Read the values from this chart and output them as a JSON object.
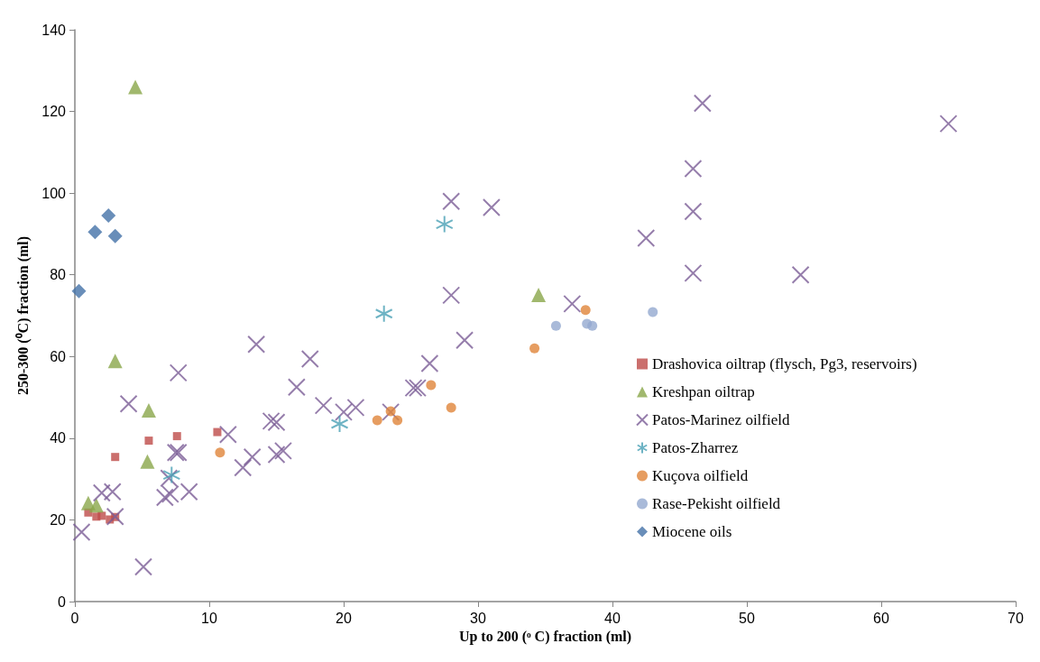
{
  "chart_data": {
    "type": "scatter",
    "xlabel": "Up to 200 (ᵒ C) fraction (ml)",
    "ylabel": "250-300 (⁰C) fraction (ml)",
    "xlim": [
      0,
      70
    ],
    "xticks": [
      0,
      10,
      20,
      30,
      40,
      50,
      60,
      70
    ],
    "ylim": [
      0,
      140
    ],
    "yticks": [
      0,
      20,
      40,
      60,
      80,
      100,
      120,
      140
    ],
    "grid": false,
    "legend": "right",
    "series": [
      {
        "name": "Drashovica oiltrap (flysch, Pg3, reservoirs)",
        "color": "#be4b48",
        "marker": "square",
        "x": [
          1.0,
          1.6,
          2.0,
          2.6,
          3.0,
          3.0,
          5.5,
          7.6,
          10.6
        ],
        "values": [
          21.8,
          20.8,
          21,
          20.1,
          20.7,
          35.4,
          39.4,
          40.5,
          41.5
        ]
      },
      {
        "name": "Kreshpan oiltrap",
        "color": "#8aa64a",
        "marker": "triangle",
        "x": [
          4.5,
          1.0,
          1.6,
          3.0,
          5.5,
          5.4,
          34.5
        ],
        "values": [
          126,
          24.1,
          23.6,
          58.9,
          46.8,
          34.3,
          75.1
        ]
      },
      {
        "name": "Patos-Marinez oilfield",
        "color": "#7a5c96",
        "marker": "cross",
        "x": [
          0.5,
          2.0,
          2.8,
          3.0,
          4.0,
          5.1,
          6.7,
          7.1,
          7.0,
          7.5,
          7.7,
          7.7,
          8.5,
          11.4,
          12.5,
          13.2,
          13.5,
          14.6,
          15.0,
          15.0,
          15.5,
          16.5,
          17.5,
          18.5,
          20.0,
          20.9,
          23.5,
          25.2,
          25.5,
          26.4,
          28.0,
          28.0,
          29.0,
          31.0,
          37.0,
          42.5,
          46.0,
          46.0,
          46.0,
          46.7,
          54.0,
          65.0
        ],
        "values": [
          17,
          26.6,
          26.9,
          20.8,
          48.4,
          8.5,
          25.5,
          26.3,
          30.2,
          36.5,
          36.5,
          56,
          26.9,
          40.9,
          32.8,
          35.4,
          63,
          44.2,
          43.9,
          36,
          36.9,
          52.5,
          59.4,
          48,
          46.4,
          47.5,
          46.4,
          52.3,
          52.3,
          58.3,
          75,
          98,
          64,
          96.5,
          72.9,
          89,
          106,
          95.5,
          80.4,
          122,
          80,
          117
        ]
      },
      {
        "name": "Patos-Zharrez",
        "color": "#4aa0b5",
        "marker": "cross",
        "x": [
          7.2,
          19.7,
          23.0,
          27.5
        ],
        "values": [
          31,
          43.5,
          70.5,
          92.4
        ]
      },
      {
        "name": "Kuçova oilfield",
        "color": "#e0843a",
        "marker": "circle",
        "x": [
          10.8,
          22.5,
          23.5,
          24.0,
          26.5,
          28.0,
          34.2,
          38.0
        ],
        "values": [
          36.5,
          44.4,
          46.6,
          44.4,
          53,
          47.5,
          62,
          71.4
        ]
      },
      {
        "name": "Rase-Pekisht oilfield",
        "color": "#93a9cf",
        "marker": "circle",
        "x": [
          35.8,
          38.1,
          38.5,
          43.0
        ],
        "values": [
          67.5,
          68,
          67.5,
          70.9
        ]
      },
      {
        "name": "Miocene oils",
        "color": "#4472a8",
        "marker": "diamond",
        "x": [
          0.3,
          1.5,
          2.5,
          3.0
        ],
        "values": [
          76,
          90.5,
          94.5,
          89.5
        ]
      }
    ]
  }
}
